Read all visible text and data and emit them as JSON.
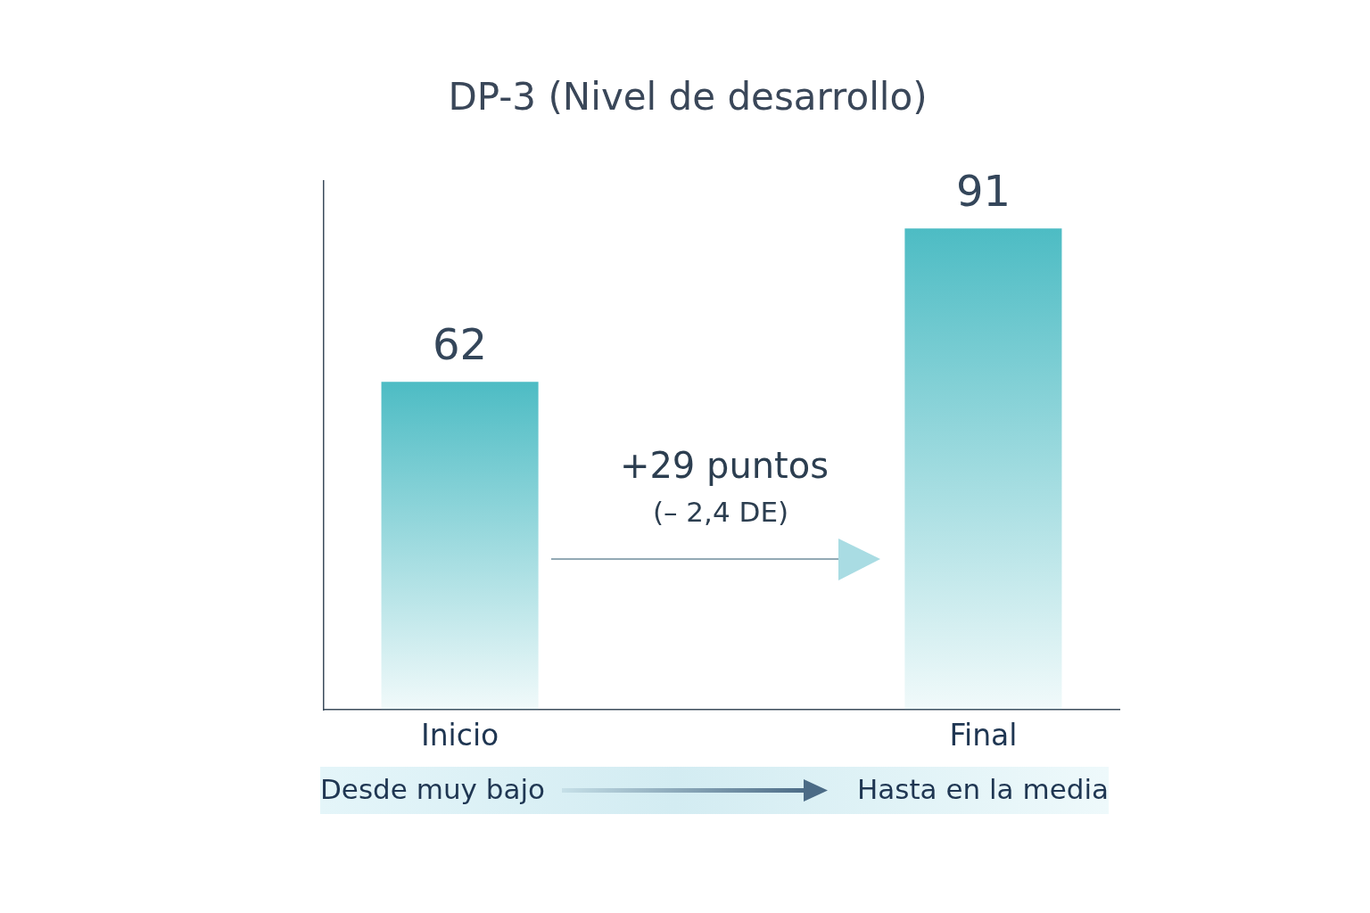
{
  "chart_data": {
    "type": "bar",
    "title": "DP-3 (Nivel de desarrollo)",
    "categories": [
      "Inicio",
      "Final"
    ],
    "values": [
      62,
      91
    ],
    "color": "#4dbcc4",
    "data_labels": true,
    "tick_labels": "x",
    "annotations": [
      "+29 puntos",
      "(– 2,4 DE)",
      "Desde muy bajo",
      "Hasta en la media"
    ]
  }
}
